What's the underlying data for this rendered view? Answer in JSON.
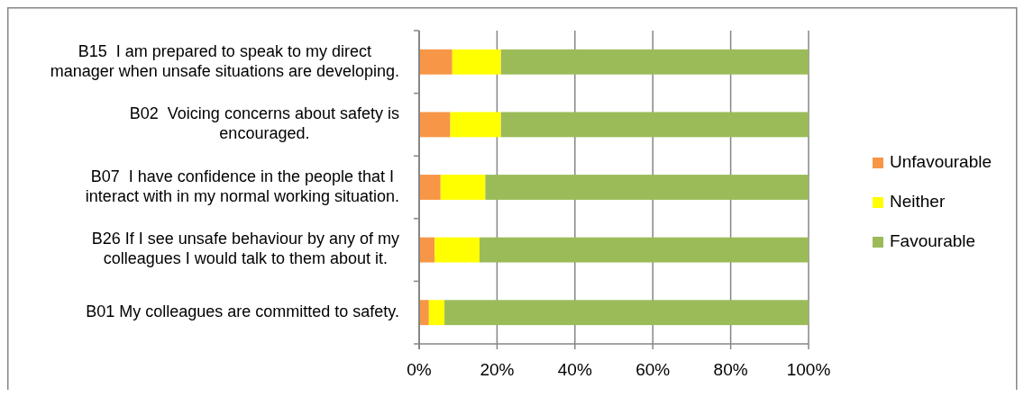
{
  "chart_data": {
    "type": "bar",
    "orientation": "horizontal",
    "stacked": true,
    "categories": [
      "B15  I am prepared to speak to my direct manager when unsafe situations are developing.",
      "B02  Voicing concerns about safety is encouraged.",
      "B07  I have confidence in the people that I interact with in my normal working situation.",
      "B26 If I see unsafe behaviour by any of my colleagues I would talk to them about it.",
      "B01 My colleagues are committed to safety."
    ],
    "series": [
      {
        "name": "Unfavourable",
        "color": "#f79646",
        "values": [
          8.5,
          8,
          5.5,
          4,
          2.5
        ]
      },
      {
        "name": "Neither",
        "color": "#ffff00",
        "values": [
          12.5,
          13,
          11.5,
          11.5,
          4
        ]
      },
      {
        "name": "Favourable",
        "color": "#9bbb59",
        "values": [
          79,
          79,
          83,
          84.5,
          93.5
        ]
      }
    ],
    "xlim": [
      0,
      100
    ],
    "xticks": [
      {
        "value": 0,
        "label": "0%"
      },
      {
        "value": 20,
        "label": "20%"
      },
      {
        "value": 40,
        "label": "40%"
      },
      {
        "value": 60,
        "label": "60%"
      },
      {
        "value": 80,
        "label": "80%"
      },
      {
        "value": 100,
        "label": "100%"
      }
    ],
    "grid": "x",
    "legend": "right"
  }
}
